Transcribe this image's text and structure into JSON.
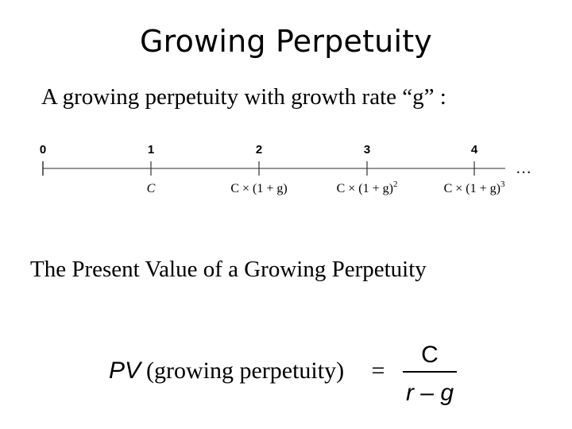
{
  "slide": {
    "title": "Growing Perpetuity",
    "subtitle": "A growing perpetuity with growth rate “g” :",
    "pv_heading": "The Present Value of a Growing Perpetuity"
  },
  "timeline": {
    "periods": [
      "0",
      "1",
      "2",
      "3",
      "4"
    ],
    "cashflows": [
      {
        "base": "",
        "exponent": ""
      },
      {
        "base": "C",
        "exponent": ""
      },
      {
        "base": "C × (1 + g)",
        "exponent": ""
      },
      {
        "base": "C × (1 + g)",
        "exponent": "2"
      },
      {
        "base": "C × (1 + g)",
        "exponent": "3"
      }
    ],
    "continuation": "…"
  },
  "formula": {
    "lhs_symbol": "PV",
    "lhs_text": "(growing perpetuity)",
    "equals": "=",
    "numerator": "C",
    "denominator": "r – g"
  }
}
